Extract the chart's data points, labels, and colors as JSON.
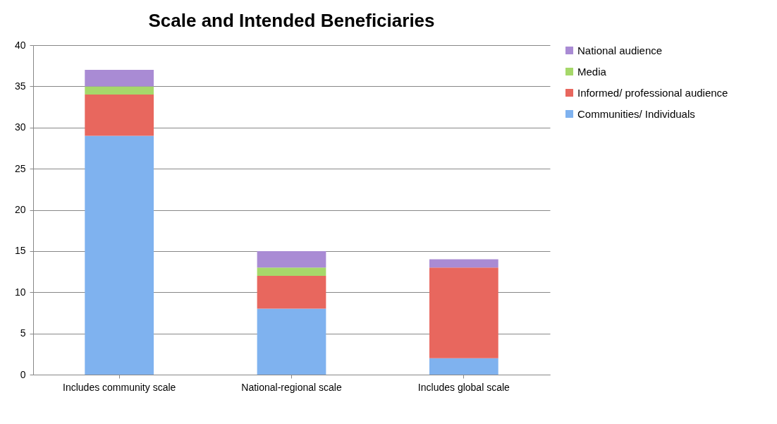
{
  "chart_data": {
    "type": "bar",
    "title": "Scale and Intended Beneficiaries",
    "categories": [
      "Includes community scale",
      "National-regional scale",
      "Includes global scale"
    ],
    "stacked": true,
    "ylim": [
      0,
      40
    ],
    "yticks": [
      0,
      5,
      10,
      15,
      20,
      25,
      30,
      35,
      40
    ],
    "grid": "y",
    "legend": "right",
    "series": [
      {
        "name": "Communities/ Individuals",
        "color": "#7fb2ef",
        "values": [
          29,
          8,
          2
        ]
      },
      {
        "name": "Informed/ professional audience",
        "color": "#e8675e",
        "values": [
          5,
          4,
          11
        ]
      },
      {
        "name": "Media",
        "color": "#a6d86a",
        "values": [
          1,
          1,
          0
        ]
      },
      {
        "name": "National audience",
        "color": "#a98bd4",
        "values": [
          2,
          2,
          1
        ]
      }
    ]
  }
}
